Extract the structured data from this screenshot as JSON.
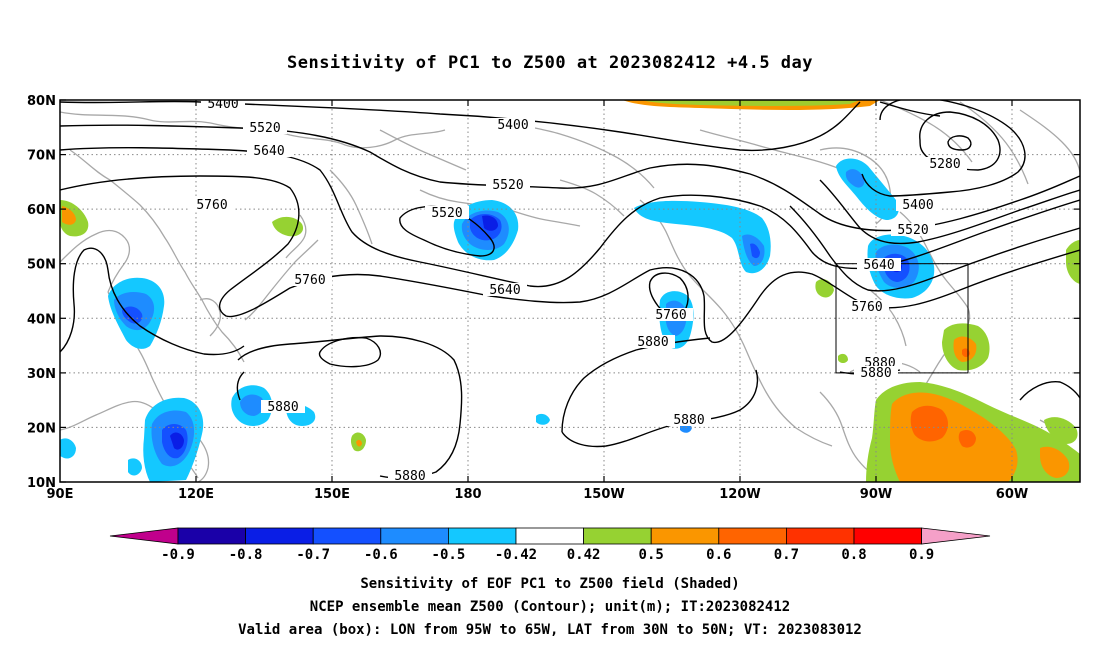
{
  "title": "Sensitivity of PC1 to Z500 at 2023082412 +4.5 day",
  "lat_labels": [
    "80N",
    "70N",
    "60N",
    "50N",
    "40N",
    "30N",
    "20N",
    "10N"
  ],
  "lon_labels": [
    "90E",
    "120E",
    "150E",
    "180",
    "150W",
    "120W",
    "90W",
    "60W"
  ],
  "contour_labels": [
    "5400",
    "5520",
    "5640",
    "5760",
    "5400",
    "5520",
    "5520",
    "5760",
    "5640",
    "5880",
    "5760",
    "5880",
    "5280",
    "5400",
    "5520",
    "5640",
    "5760",
    "5880",
    "5880",
    "5880",
    "5880"
  ],
  "colorbar": {
    "labels": [
      "-0.9",
      "-0.8",
      "-0.7",
      "-0.6",
      "-0.5",
      "-0.42",
      "0.42",
      "0.5",
      "0.6",
      "0.7",
      "0.8",
      "0.9"
    ],
    "colors": [
      "#c0008c",
      "#1a00a8",
      "#0a1ee6",
      "#1450ff",
      "#1e8cff",
      "#14c8ff",
      "#ffffff",
      "#96d232",
      "#fa9600",
      "#ff6400",
      "#ff3200",
      "#ff0000",
      "#f5a0c8"
    ]
  },
  "footer": {
    "line1": "Sensitivity of EOF PC1 to Z500 field (Shaded)",
    "line2": "NCEP ensemble mean Z500 (Contour); unit(m); IT:2023082412",
    "line3": "Valid area (box): LON from 95W to 65W, LAT from 30N to 50N; VT: 2023083012"
  }
}
